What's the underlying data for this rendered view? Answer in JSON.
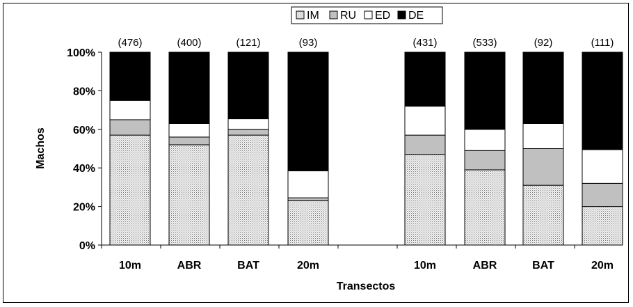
{
  "chart_data": {
    "type": "bar",
    "stacked": true,
    "normalized": true,
    "title": "",
    "xlabel": "Transectos",
    "ylabel": "Machos",
    "ylim": [
      0,
      100
    ],
    "yticks": [
      "0%",
      "20%",
      "40%",
      "60%",
      "80%",
      "100%"
    ],
    "grid": false,
    "legend_position": "top-center",
    "categories": [
      "10m",
      "ABR",
      "BAT",
      "20m",
      "10m",
      "ABR",
      "BAT",
      "20m"
    ],
    "groups": [
      [
        0,
        1,
        2,
        3
      ],
      [
        4,
        5,
        6,
        7
      ]
    ],
    "counts": [
      "(476)",
      "(400)",
      "(121)",
      "(93)",
      "(431)",
      "(533)",
      "(92)",
      "(111)"
    ],
    "series": [
      {
        "name": "IM",
        "fill": "pattern-dots",
        "values": [
          57,
          52,
          57,
          23,
          47,
          39,
          31,
          20
        ]
      },
      {
        "name": "RU",
        "fill": "#c0c0c0",
        "values": [
          8,
          4,
          3,
          1.5,
          10,
          10,
          19,
          12
        ]
      },
      {
        "name": "ED",
        "fill": "#ffffff",
        "values": [
          10,
          7,
          5.5,
          14,
          15,
          11,
          13,
          17.5
        ]
      },
      {
        "name": "DE",
        "fill": "#000000",
        "values": [
          25,
          37,
          34.5,
          61.5,
          28,
          40,
          37,
          50.5
        ]
      }
    ]
  }
}
